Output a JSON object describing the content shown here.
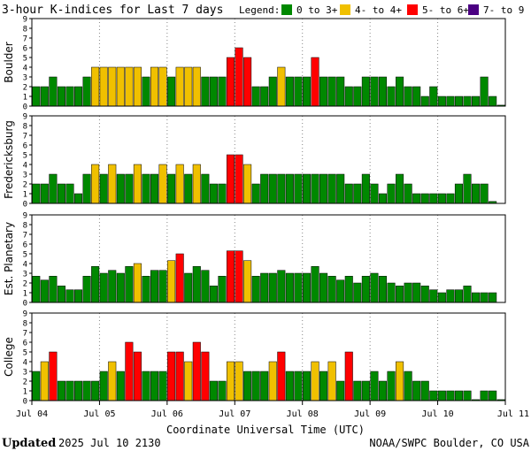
{
  "chart_data": {
    "type": "bar",
    "title": "3-hour K-indices for Last 7 days",
    "legend": {
      "label": "Legend:",
      "entries": [
        {
          "label": "0 to 3+",
          "color": "#008800"
        },
        {
          "label": "4- to 4+",
          "color": "#f0c000"
        },
        {
          "label": "5- to 6+",
          "color": "#ff0000"
        },
        {
          "label": "7- to 9",
          "color": "#4b0082"
        }
      ]
    },
    "ylim": [
      0,
      9
    ],
    "yticks": [
      "0",
      "1",
      "2",
      "3",
      "4",
      "5",
      "6",
      "7",
      "8",
      "9"
    ],
    "xlabel": "Coordinate Universal Time (UTC)",
    "x_ticks": [
      "Jul 04",
      "Jul 05",
      "Jul 06",
      "Jul 07",
      "Jul 08",
      "Jul 09",
      "Jul 10",
      "Jul 11"
    ],
    "bars_per_day": 8,
    "series": [
      {
        "name": "Boulder",
        "values": [
          2,
          2,
          3,
          2,
          2,
          2,
          3,
          4,
          4,
          4,
          4,
          4,
          4,
          3,
          4,
          4,
          3,
          4,
          4,
          4,
          3,
          3,
          3,
          5,
          6,
          5,
          2,
          2,
          3,
          4,
          3,
          3,
          3,
          5,
          3,
          3,
          3,
          2,
          2,
          3,
          3,
          3,
          2,
          3,
          2,
          2,
          1,
          2,
          1,
          1,
          1,
          1,
          1,
          3,
          1,
          0.1
        ]
      },
      {
        "name": "Fredericksburg",
        "values": [
          2,
          2,
          3,
          2,
          2,
          1,
          3,
          4,
          3,
          4,
          3,
          3,
          4,
          3,
          3,
          4,
          3,
          4,
          3,
          4,
          3,
          2,
          2,
          5,
          5,
          4,
          2,
          3,
          3,
          3,
          3,
          3,
          3,
          3,
          3,
          3,
          3,
          2,
          2,
          3,
          2,
          1,
          2,
          3,
          2,
          1,
          1,
          1,
          1,
          1,
          2,
          3,
          2,
          2,
          0.2
        ]
      },
      {
        "name": "Est. Planetary",
        "values": [
          2.7,
          2.3,
          2.7,
          1.7,
          1.3,
          1.3,
          2.7,
          3.7,
          3,
          3.3,
          3,
          3.7,
          4,
          2.7,
          3.3,
          3.3,
          4.3,
          5,
          3,
          3.7,
          3.3,
          1.7,
          2.7,
          5.3,
          5.3,
          4.3,
          2.7,
          3,
          3,
          3.3,
          3,
          3,
          3,
          3.7,
          3,
          2.7,
          2.3,
          2.7,
          2,
          2.7,
          3,
          2.7,
          2,
          1.7,
          2,
          2,
          1.7,
          1.3,
          1,
          1.3,
          1.3,
          1.7,
          1,
          1,
          1
        ]
      },
      {
        "name": "College",
        "values": [
          3,
          4,
          5,
          2,
          2,
          2,
          2,
          2,
          3,
          4,
          3,
          6,
          5,
          3,
          3,
          3,
          5,
          5,
          4,
          6,
          5,
          2,
          2,
          4,
          4,
          3,
          3,
          3,
          4,
          5,
          3,
          3,
          3,
          4,
          3,
          4,
          2,
          5,
          2,
          2,
          3,
          2,
          3,
          4,
          3,
          2,
          2,
          1,
          1,
          1,
          1,
          1,
          0.1,
          1,
          1,
          0.1
        ]
      }
    ]
  },
  "footer": {
    "updated_label": "Updated",
    "updated_value": "2025 Jul 10 2130",
    "credit": "NOAA/SWPC Boulder, CO USA"
  }
}
